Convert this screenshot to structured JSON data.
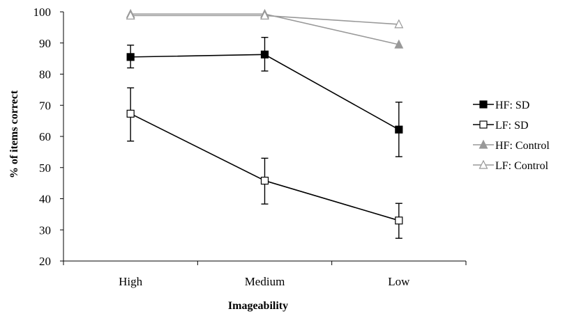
{
  "chart_data": {
    "type": "line",
    "title": "",
    "xlabel": "Imageability",
    "ylabel": "% of items correct",
    "categories": [
      "High",
      "Medium",
      "Low"
    ],
    "ylim": [
      20,
      100
    ],
    "yticks": [
      20,
      30,
      40,
      50,
      60,
      70,
      80,
      90,
      100
    ],
    "grid": false,
    "legend": "right",
    "series": [
      {
        "name": "HF: SD",
        "values": [
          85.5,
          86.3,
          62.2
        ],
        "error_low": [
          82.0,
          81.0,
          53.5
        ],
        "error_high": [
          89.3,
          91.8,
          71.0
        ],
        "marker": "filled-square",
        "color": "#000000"
      },
      {
        "name": "LF: SD",
        "values": [
          67.3,
          45.8,
          33.0
        ],
        "error_low": [
          58.5,
          38.3,
          27.3
        ],
        "error_high": [
          75.6,
          53.0,
          38.5
        ],
        "marker": "open-square",
        "color": "#000000"
      },
      {
        "name": "HF: Control",
        "values": [
          99.3,
          99.3,
          89.5
        ],
        "marker": "filled-triangle",
        "color": "#999999"
      },
      {
        "name": "LF: Control",
        "values": [
          98.8,
          98.8,
          96.0
        ],
        "marker": "open-triangle",
        "color": "#999999"
      }
    ]
  }
}
